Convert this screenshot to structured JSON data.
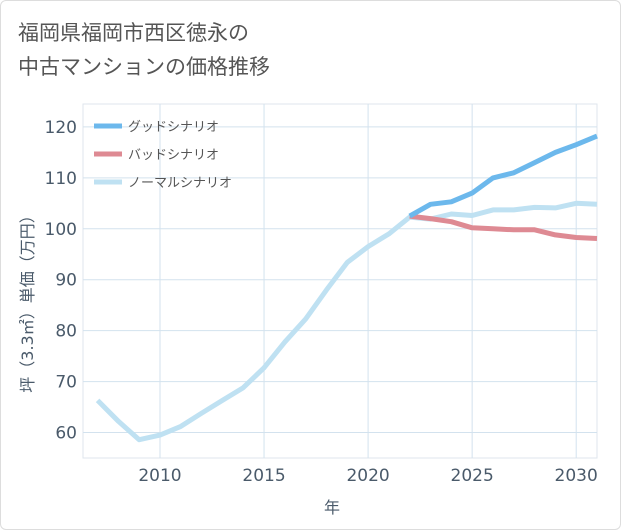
{
  "title_lines": [
    "福岡県福岡市西区徳永の",
    "中古マンションの価格推移"
  ],
  "chart_data": {
    "type": "line",
    "xlabel": "年",
    "ylabel": "坪（3.3㎡）単価（万円）",
    "xlim": [
      2006.3,
      2031
    ],
    "ylim": [
      55,
      124.5
    ],
    "x_ticks": [
      2010,
      2015,
      2020,
      2025,
      2030
    ],
    "y_ticks": [
      60,
      70,
      80,
      90,
      100,
      110,
      120
    ],
    "grid": true,
    "legend_position": "top-left",
    "series": [
      {
        "name": "グッドシナリオ",
        "color": "#6cb8ec",
        "x": [
          2022,
          2023,
          2024,
          2025,
          2026,
          2027,
          2028,
          2029,
          2030,
          2031
        ],
        "y": [
          102.5,
          104.8,
          105.3,
          107.0,
          110.0,
          111.0,
          113.0,
          115.0,
          116.5,
          118.2
        ]
      },
      {
        "name": "バッドシナリオ",
        "color": "#de8a93",
        "x": [
          2022,
          2023,
          2024,
          2025,
          2026,
          2027,
          2028,
          2029,
          2030,
          2031
        ],
        "y": [
          102.5,
          102.0,
          101.4,
          100.2,
          100.0,
          99.8,
          99.8,
          98.8,
          98.3,
          98.1
        ]
      },
      {
        "name": "ノーマルシナリオ",
        "color": "#bfe1f2",
        "x": [
          2007,
          2008,
          2009,
          2010,
          2011,
          2012,
          2013,
          2014,
          2015,
          2016,
          2017,
          2018,
          2019,
          2020,
          2021,
          2022,
          2023,
          2024,
          2025,
          2026,
          2027,
          2028,
          2029,
          2030,
          2031
        ],
        "y": [
          66.3,
          62.2,
          58.6,
          59.5,
          61.2,
          63.8,
          66.3,
          68.8,
          72.7,
          77.8,
          82.3,
          88.0,
          93.4,
          96.5,
          99.0,
          102.3,
          101.9,
          102.9,
          102.6,
          103.7,
          103.7,
          104.2,
          104.1,
          105.0,
          104.8
        ]
      }
    ]
  }
}
